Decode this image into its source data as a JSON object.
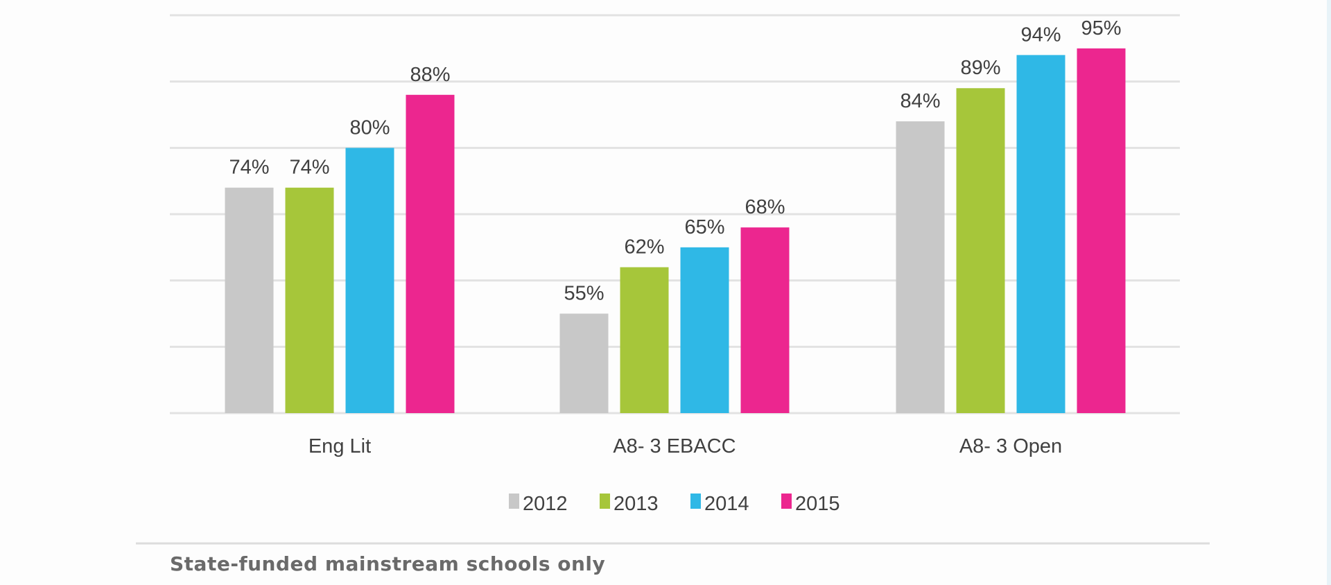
{
  "chart_data": {
    "type": "bar",
    "title": "",
    "xlabel": "",
    "ylabel": "",
    "categories": [
      "Eng Lit",
      "A8- 3 EBACC",
      "A8- 3 Open"
    ],
    "series": [
      {
        "name": "2012",
        "color": "#c8c8c8",
        "values": [
          74,
          55,
          84
        ],
        "labels": [
          "74%",
          "55%",
          "84%"
        ]
      },
      {
        "name": "2013",
        "color": "#a6c63a",
        "values": [
          74,
          62,
          89
        ],
        "labels": [
          "74%",
          "62%",
          "89%"
        ]
      },
      {
        "name": "2014",
        "color": "#2fb8e6",
        "values": [
          80,
          65,
          94
        ],
        "labels": [
          "80%",
          "65%",
          "94%"
        ]
      },
      {
        "name": "2015",
        "color": "#ec268f",
        "values": [
          88,
          68,
          95
        ],
        "labels": [
          "88%",
          "68%",
          "95%"
        ]
      }
    ],
    "ylim": [
      40,
      100
    ],
    "grid": true,
    "y_tick_labels_shown": false,
    "legend_placement": "bottom"
  },
  "footnote": "State-funded mainstream schools only"
}
